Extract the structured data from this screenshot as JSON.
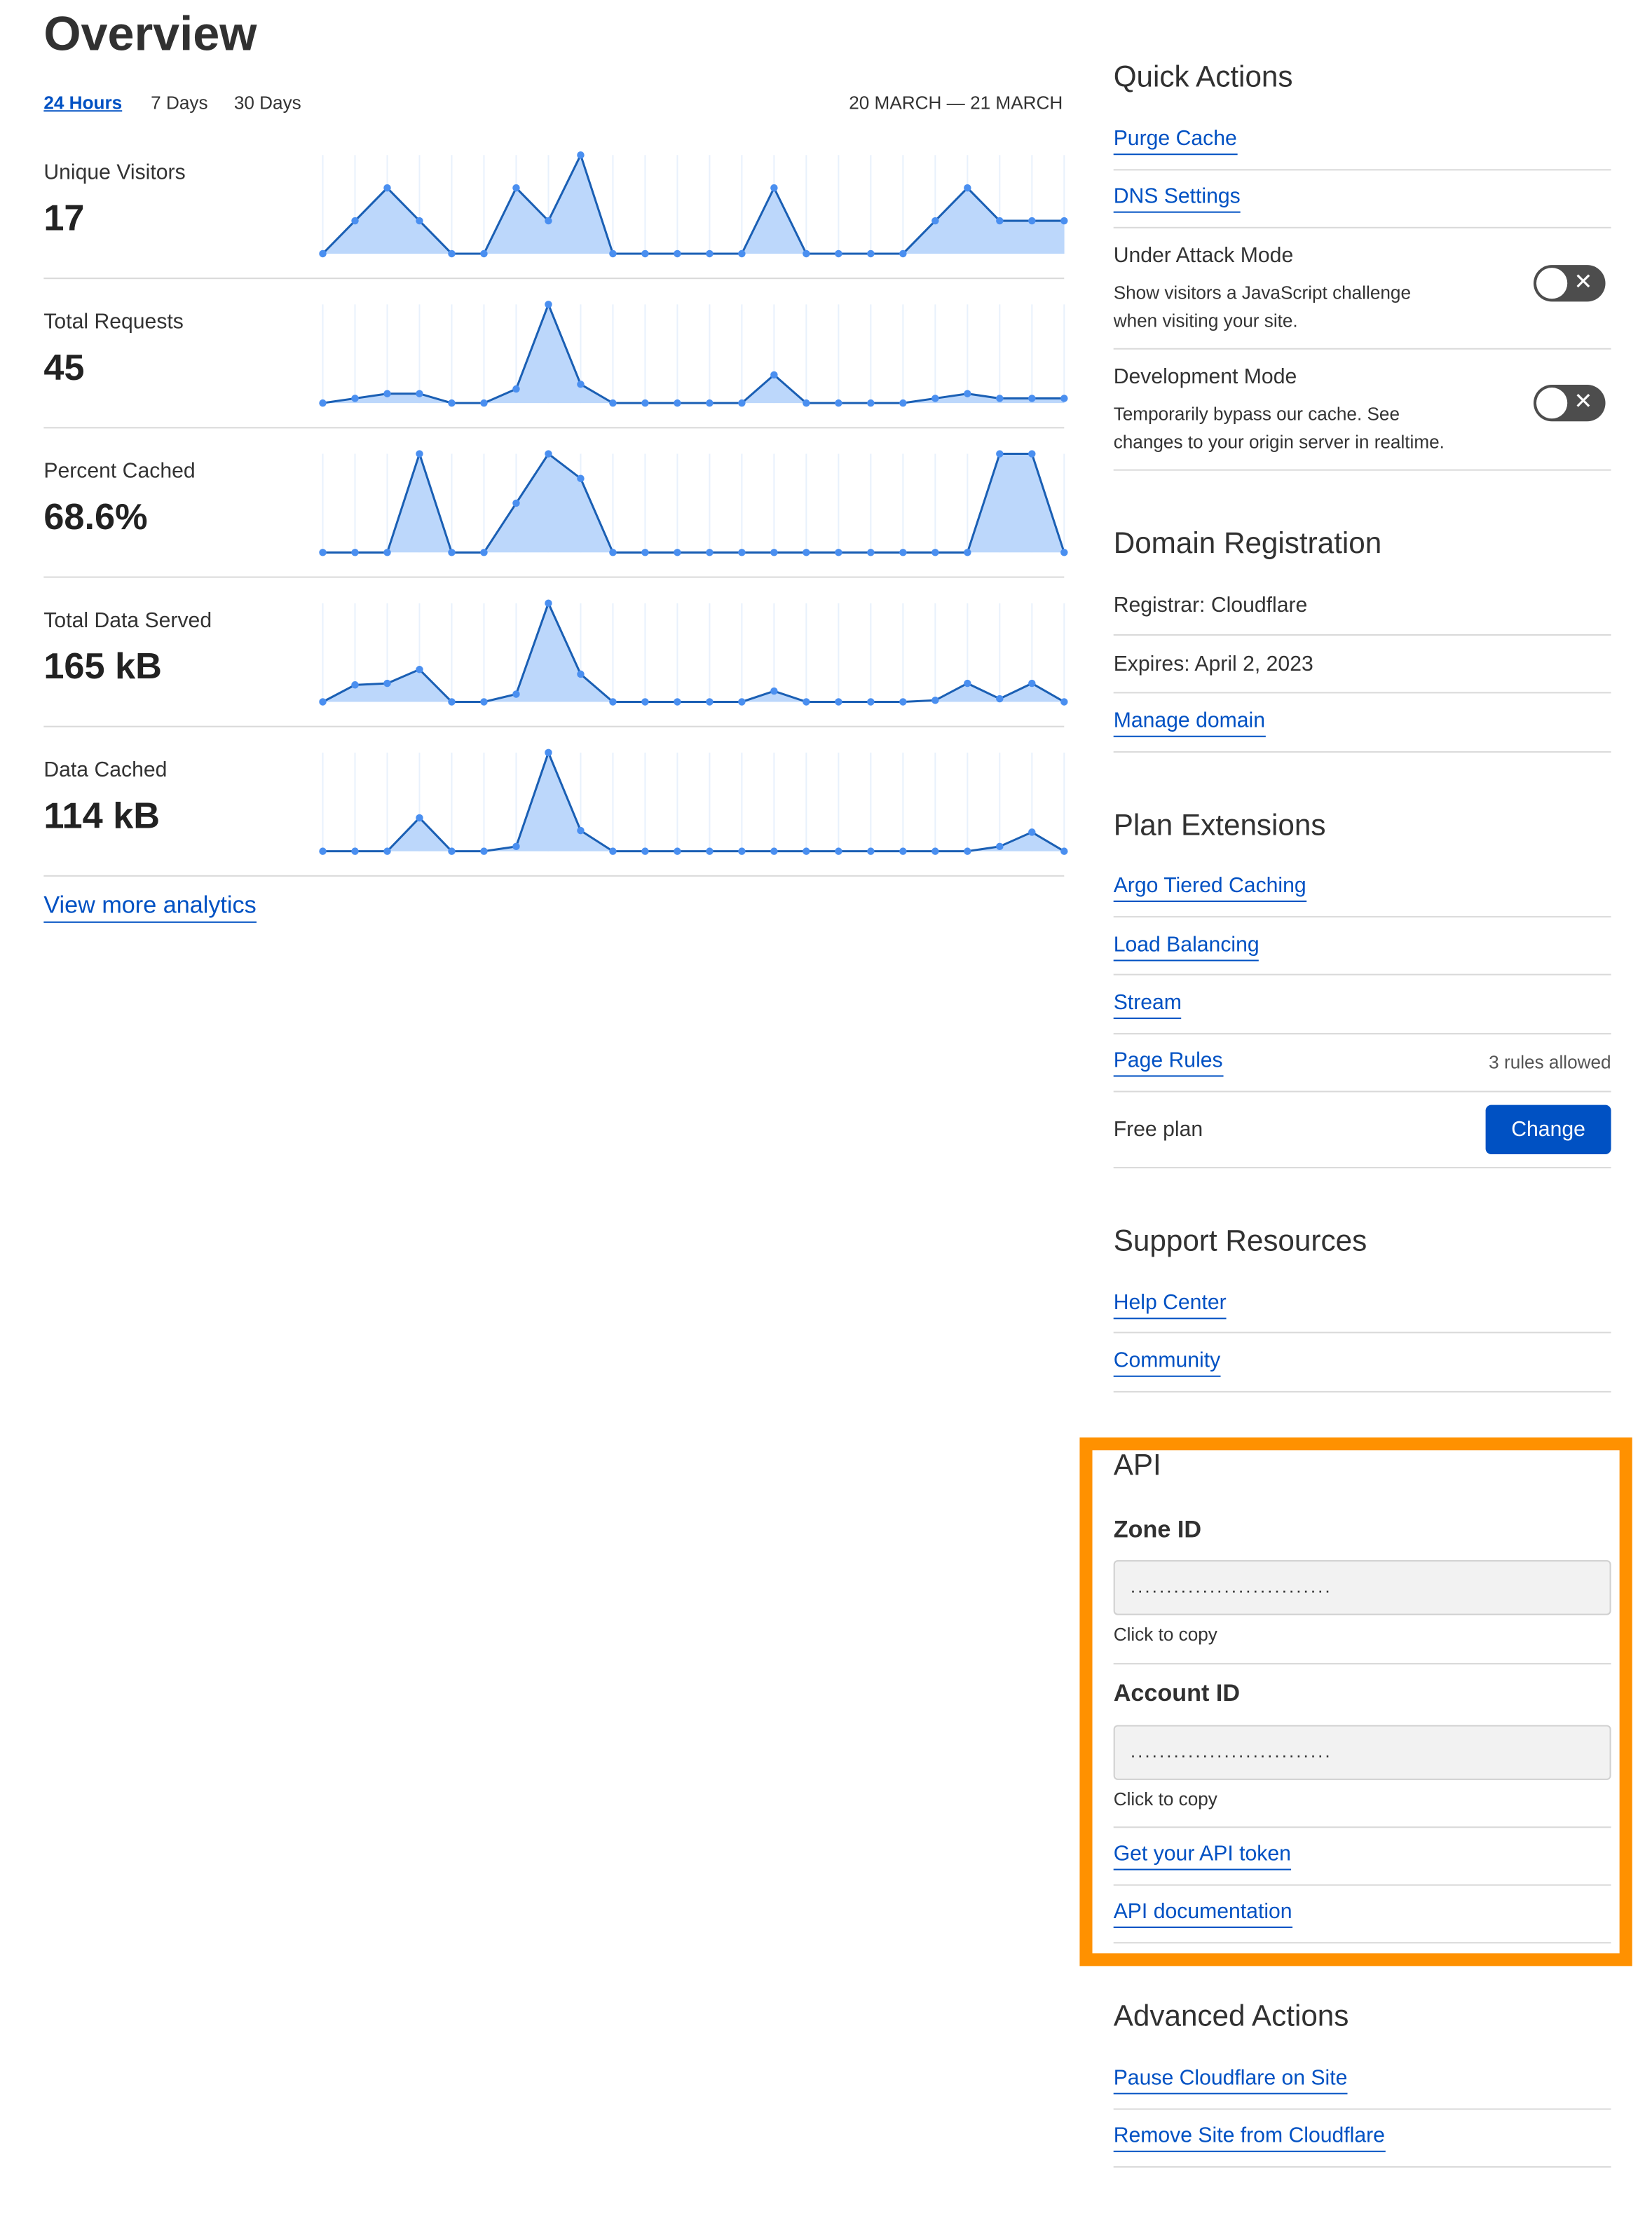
{
  "overview": {
    "title": "Overview",
    "tabs": [
      {
        "label": "24 Hours",
        "active": true
      },
      {
        "label": "7 Days",
        "active": false
      },
      {
        "label": "30 Days",
        "active": false
      }
    ],
    "date_range": "20 MARCH — 21 MARCH",
    "view_more": "View more analytics",
    "metrics": [
      {
        "label": "Unique Visitors",
        "value": "17",
        "series": [
          0,
          1,
          2,
          1,
          0,
          0,
          2,
          1,
          3,
          0,
          0,
          0,
          0,
          0,
          2,
          0,
          0,
          0,
          0,
          1,
          2,
          1,
          1,
          1
        ]
      },
      {
        "label": "Total Requests",
        "value": "45",
        "series": [
          0,
          1,
          2,
          2,
          0,
          0,
          3,
          21,
          4,
          0,
          0,
          0,
          0,
          0,
          6,
          0,
          0,
          0,
          0,
          1,
          2,
          1,
          1,
          1
        ]
      },
      {
        "label": "Percent Cached",
        "value": "68.6%",
        "series": [
          0,
          0,
          0,
          100,
          0,
          0,
          50,
          100,
          75,
          0,
          0,
          0,
          0,
          0,
          0,
          0,
          0,
          0,
          0,
          0,
          0,
          100,
          100,
          0
        ]
      },
      {
        "label": "Total Data Served",
        "value": "165 kB",
        "series": [
          0,
          11,
          12,
          21,
          0,
          0,
          5,
          64,
          18,
          0,
          0,
          0,
          0,
          0,
          7,
          0,
          0,
          0,
          0,
          1,
          12,
          2,
          12,
          0
        ]
      },
      {
        "label": "Data Cached",
        "value": "114 kB",
        "series": [
          0,
          0,
          0,
          21,
          0,
          0,
          3,
          62,
          13,
          0,
          0,
          0,
          0,
          0,
          0,
          0,
          0,
          0,
          0,
          0,
          0,
          3,
          12,
          0
        ]
      }
    ],
    "colors": {
      "line": "#1a5fb4",
      "fill": "#bcd7fb",
      "point": "#4a8ff0",
      "grid": "#e8f1fc"
    }
  },
  "quick_actions": {
    "title": "Quick Actions",
    "purge_cache": "Purge Cache",
    "dns_settings": "DNS Settings",
    "under_attack": {
      "title": "Under Attack Mode",
      "desc1": "Show visitors a JavaScript challenge",
      "desc2": "when visiting your site.",
      "enabled": false,
      "toggle_glyph": "✕"
    },
    "dev_mode": {
      "title": "Development Mode",
      "desc1": "Temporarily bypass our cache. See",
      "desc2": "changes to your origin server in realtime.",
      "enabled": false,
      "toggle_glyph": "✕"
    }
  },
  "domain_registration": {
    "title": "Domain Registration",
    "registrar": "Registrar: Cloudflare",
    "expires": "Expires: April 2, 2023",
    "manage": "Manage domain"
  },
  "plan_extensions": {
    "title": "Plan Extensions",
    "argo": "Argo Tiered Caching",
    "load_balancing": "Load Balancing",
    "stream": "Stream",
    "page_rules": "Page Rules",
    "page_rules_note": "3 rules allowed",
    "plan": "Free plan",
    "change": "Change"
  },
  "support": {
    "title": "Support Resources",
    "help": "Help Center",
    "community": "Community"
  },
  "api": {
    "title": "API",
    "zone_label": "Zone ID",
    "zone_value": "............................",
    "account_label": "Account ID",
    "account_value": "............................",
    "click_to_copy": "Click to copy",
    "get_token": "Get your API token",
    "docs": "API documentation",
    "highlight_color": "#ff9100"
  },
  "advanced": {
    "title": "Advanced Actions",
    "pause": "Pause Cloudflare on Site",
    "remove": "Remove Site from Cloudflare"
  }
}
